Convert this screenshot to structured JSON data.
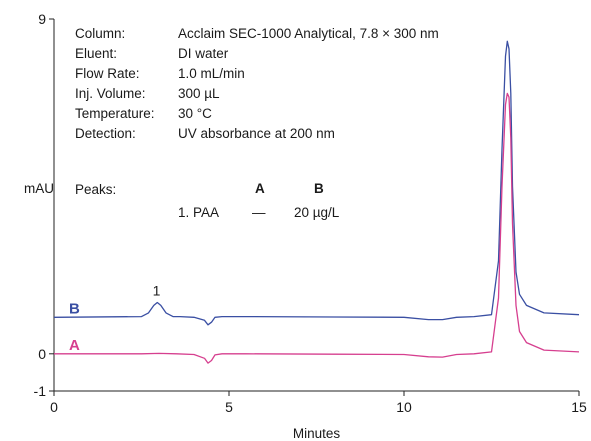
{
  "conditions": [
    {
      "label": "Column:",
      "value": "Acclaim SEC-1000 Analytical, 7.8 × 300 nm"
    },
    {
      "label": "Eluent:",
      "value": "DI water"
    },
    {
      "label": "Flow Rate:",
      "value": "1.0 mL/min"
    },
    {
      "label": "Inj. Volume:",
      "value": "300 µL"
    },
    {
      "label": "Temperature:",
      "value": "30 °C"
    },
    {
      "label": "Detection:",
      "value": "UV absorbance at 200 nm"
    }
  ],
  "peaks": {
    "label": "Peaks:",
    "col_a": "A",
    "col_b": "B",
    "rows": [
      {
        "name": "1. PAA",
        "a": "—",
        "b": "20 µg/L"
      }
    ]
  },
  "chart_data": {
    "type": "line",
    "title": "",
    "xlabel": "Minutes",
    "ylabel": "mAU",
    "xlim": [
      0,
      15
    ],
    "ylim": [
      -1,
      9
    ],
    "xticks": [
      0,
      5,
      10,
      15
    ],
    "yticks": [
      -1,
      0,
      9
    ],
    "grid": false,
    "annotations": [
      {
        "text": "1",
        "x": 2.9,
        "y": 1.38
      }
    ],
    "series": [
      {
        "name": "B",
        "color": "#3a4fa3",
        "x": [
          0,
          2.5,
          2.7,
          2.85,
          2.95,
          3.05,
          3.2,
          3.4,
          3.6,
          4.0,
          4.3,
          4.4,
          4.5,
          4.6,
          4.8,
          5.5,
          8.0,
          10.0,
          10.7,
          11.1,
          11.5,
          12.0,
          12.5,
          12.7,
          12.8,
          12.9,
          12.95,
          13.0,
          13.05,
          13.1,
          13.2,
          13.3,
          13.5,
          14.0,
          15.0
        ],
        "y": [
          0.98,
          1.0,
          1.1,
          1.3,
          1.38,
          1.3,
          1.1,
          1.0,
          1.0,
          0.98,
          0.9,
          0.78,
          0.85,
          0.98,
          1.0,
          1.0,
          0.99,
          0.98,
          0.92,
          0.92,
          0.98,
          1.0,
          1.05,
          2.5,
          5.5,
          8.0,
          8.4,
          8.2,
          7.0,
          4.5,
          2.2,
          1.6,
          1.3,
          1.1,
          1.05
        ]
      },
      {
        "name": "A",
        "color": "#d63f8f",
        "x": [
          0,
          2.5,
          3.0,
          3.5,
          4.0,
          4.3,
          4.4,
          4.5,
          4.6,
          4.8,
          5.5,
          8.0,
          10.0,
          10.7,
          11.1,
          11.5,
          12.0,
          12.5,
          12.7,
          12.8,
          12.9,
          12.95,
          13.0,
          13.05,
          13.1,
          13.2,
          13.3,
          13.5,
          14.0,
          15.0
        ],
        "y": [
          0.0,
          0.0,
          0.01,
          0.0,
          -0.02,
          -0.12,
          -0.25,
          -0.18,
          -0.03,
          0.0,
          0.0,
          -0.01,
          -0.02,
          -0.08,
          -0.09,
          -0.02,
          0.0,
          0.05,
          1.5,
          4.5,
          6.7,
          7.0,
          6.9,
          5.8,
          3.5,
          1.3,
          0.6,
          0.3,
          0.1,
          0.05
        ]
      }
    ]
  }
}
